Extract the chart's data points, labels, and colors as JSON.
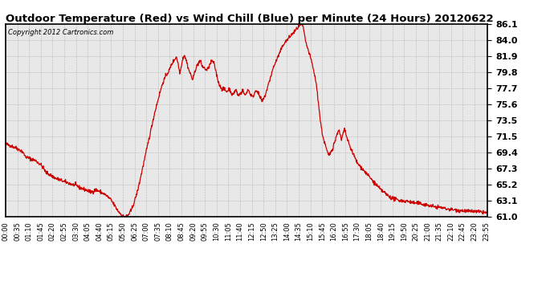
{
  "title": "Outdoor Temperature (Red) vs Wind Chill (Blue) per Minute (24 Hours) 20120622",
  "copyright": "Copyright 2012 Cartronics.com",
  "yticks": [
    61.0,
    63.1,
    65.2,
    67.3,
    69.4,
    71.5,
    73.5,
    75.6,
    77.7,
    79.8,
    81.9,
    84.0,
    86.1
  ],
  "ylim": [
    61.0,
    86.1
  ],
  "line_color": "#cc0000",
  "bg_color": "#e8e8e8",
  "grid_color": "#aaaaaa",
  "x_labels": [
    "00:00",
    "00:35",
    "01:10",
    "01:45",
    "02:20",
    "02:55",
    "03:30",
    "04:05",
    "04:40",
    "05:15",
    "05:50",
    "06:25",
    "07:00",
    "07:35",
    "08:10",
    "08:45",
    "09:20",
    "09:55",
    "10:30",
    "11:05",
    "11:40",
    "12:15",
    "12:50",
    "13:25",
    "14:00",
    "14:35",
    "15:10",
    "15:45",
    "16:20",
    "16:55",
    "17:30",
    "18:05",
    "18:40",
    "19:15",
    "19:50",
    "20:25",
    "21:00",
    "21:35",
    "22:10",
    "22:45",
    "23:20",
    "23:55"
  ],
  "keypoints": [
    [
      0,
      70.5
    ],
    [
      30,
      70.0
    ],
    [
      50,
      69.5
    ],
    [
      60,
      68.8
    ],
    [
      90,
      68.3
    ],
    [
      105,
      67.8
    ],
    [
      115,
      67.2
    ],
    [
      120,
      66.8
    ],
    [
      150,
      66.0
    ],
    [
      180,
      65.5
    ],
    [
      200,
      65.2
    ],
    [
      215,
      65.0
    ],
    [
      220,
      64.8
    ],
    [
      240,
      64.5
    ],
    [
      255,
      64.2
    ],
    [
      270,
      64.5
    ],
    [
      285,
      64.2
    ],
    [
      300,
      63.8
    ],
    [
      315,
      63.2
    ],
    [
      325,
      62.5
    ],
    [
      335,
      61.8
    ],
    [
      345,
      61.3
    ],
    [
      352,
      61.05
    ],
    [
      358,
      61.0
    ],
    [
      365,
      61.15
    ],
    [
      375,
      61.8
    ],
    [
      385,
      63.0
    ],
    [
      395,
      64.5
    ],
    [
      405,
      66.5
    ],
    [
      415,
      68.5
    ],
    [
      425,
      70.5
    ],
    [
      435,
      72.5
    ],
    [
      445,
      74.5
    ],
    [
      455,
      76.2
    ],
    [
      463,
      77.5
    ],
    [
      470,
      78.5
    ],
    [
      478,
      79.3
    ],
    [
      485,
      79.8
    ],
    [
      490,
      80.2
    ],
    [
      495,
      80.8
    ],
    [
      500,
      81.2
    ],
    [
      505,
      81.5
    ],
    [
      508,
      81.7
    ],
    [
      510,
      81.8
    ],
    [
      512,
      81.5
    ],
    [
      515,
      81.0
    ],
    [
      518,
      80.2
    ],
    [
      520,
      79.8
    ],
    [
      523,
      80.2
    ],
    [
      525,
      80.8
    ],
    [
      528,
      81.3
    ],
    [
      530,
      81.7
    ],
    [
      532,
      81.9
    ],
    [
      534,
      82.1
    ],
    [
      536,
      81.8
    ],
    [
      540,
      81.3
    ],
    [
      543,
      80.8
    ],
    [
      546,
      80.3
    ],
    [
      550,
      79.8
    ],
    [
      555,
      79.3
    ],
    [
      558,
      78.8
    ],
    [
      562,
      79.3
    ],
    [
      565,
      80.0
    ],
    [
      570,
      80.5
    ],
    [
      573,
      80.8
    ],
    [
      576,
      81.0
    ],
    [
      578,
      81.2
    ],
    [
      580,
      81.3
    ],
    [
      582,
      81.2
    ],
    [
      584,
      81.0
    ],
    [
      586,
      80.7
    ],
    [
      590,
      80.5
    ],
    [
      595,
      80.3
    ],
    [
      600,
      80.1
    ],
    [
      605,
      80.3
    ],
    [
      608,
      80.6
    ],
    [
      610,
      80.8
    ],
    [
      612,
      81.0
    ],
    [
      615,
      81.2
    ],
    [
      617,
      81.3
    ],
    [
      619,
      81.2
    ],
    [
      622,
      81.0
    ],
    [
      625,
      80.5
    ],
    [
      628,
      80.0
    ],
    [
      630,
      79.5
    ],
    [
      633,
      79.0
    ],
    [
      636,
      78.5
    ],
    [
      640,
      78.0
    ],
    [
      645,
      77.8
    ],
    [
      648,
      77.5
    ],
    [
      650,
      77.7
    ],
    [
      655,
      77.5
    ],
    [
      660,
      77.3
    ],
    [
      665,
      77.5
    ],
    [
      668,
      77.7
    ],
    [
      670,
      77.5
    ],
    [
      673,
      77.3
    ],
    [
      675,
      77.0
    ],
    [
      678,
      76.8
    ],
    [
      680,
      77.0
    ],
    [
      682,
      77.2
    ],
    [
      685,
      77.4
    ],
    [
      688,
      77.5
    ],
    [
      690,
      77.3
    ],
    [
      692,
      77.0
    ],
    [
      695,
      76.8
    ],
    [
      700,
      77.0
    ],
    [
      705,
      77.2
    ],
    [
      708,
      77.5
    ],
    [
      710,
      77.3
    ],
    [
      713,
      77.0
    ],
    [
      715,
      76.8
    ],
    [
      718,
      77.0
    ],
    [
      720,
      77.2
    ],
    [
      722,
      77.5
    ],
    [
      725,
      77.5
    ],
    [
      728,
      77.3
    ],
    [
      730,
      77.0
    ],
    [
      735,
      76.8
    ],
    [
      738,
      76.5
    ],
    [
      740,
      76.8
    ],
    [
      743,
      77.0
    ],
    [
      745,
      77.3
    ],
    [
      748,
      77.5
    ],
    [
      750,
      77.5
    ],
    [
      752,
      77.3
    ],
    [
      755,
      77.0
    ],
    [
      758,
      76.8
    ],
    [
      760,
      76.5
    ],
    [
      763,
      76.3
    ],
    [
      766,
      76.0
    ],
    [
      770,
      76.3
    ],
    [
      775,
      76.8
    ],
    [
      780,
      77.5
    ],
    [
      790,
      79.0
    ],
    [
      800,
      80.5
    ],
    [
      810,
      81.5
    ],
    [
      820,
      82.5
    ],
    [
      830,
      83.5
    ],
    [
      840,
      84.0
    ],
    [
      850,
      84.5
    ],
    [
      860,
      85.0
    ],
    [
      870,
      85.5
    ],
    [
      880,
      86.0
    ],
    [
      885,
      86.1
    ],
    [
      888,
      85.8
    ],
    [
      892,
      84.8
    ],
    [
      895,
      84.0
    ],
    [
      900,
      83.2
    ],
    [
      905,
      82.5
    ],
    [
      910,
      81.8
    ],
    [
      915,
      81.0
    ],
    [
      920,
      80.0
    ],
    [
      925,
      79.0
    ],
    [
      930,
      77.5
    ],
    [
      935,
      75.5
    ],
    [
      940,
      73.5
    ],
    [
      945,
      72.0
    ],
    [
      950,
      71.0
    ],
    [
      955,
      70.3
    ],
    [
      960,
      69.5
    ],
    [
      965,
      69.0
    ],
    [
      968,
      69.2
    ],
    [
      972,
      69.5
    ],
    [
      975,
      69.8
    ],
    [
      978,
      70.0
    ],
    [
      980,
      70.5
    ],
    [
      985,
      71.0
    ],
    [
      988,
      71.5
    ],
    [
      991,
      72.0
    ],
    [
      994,
      72.3
    ],
    [
      997,
      72.0
    ],
    [
      1000,
      71.5
    ],
    [
      1003,
      71.0
    ],
    [
      1006,
      71.5
    ],
    [
      1009,
      72.0
    ],
    [
      1012,
      72.3
    ],
    [
      1015,
      72.0
    ],
    [
      1018,
      71.5
    ],
    [
      1021,
      71.0
    ],
    [
      1025,
      70.5
    ],
    [
      1030,
      70.0
    ],
    [
      1035,
      69.5
    ],
    [
      1040,
      69.0
    ],
    [
      1045,
      68.5
    ],
    [
      1050,
      68.0
    ],
    [
      1060,
      67.5
    ],
    [
      1070,
      67.0
    ],
    [
      1080,
      66.5
    ],
    [
      1090,
      66.0
    ],
    [
      1100,
      65.5
    ],
    [
      1110,
      65.0
    ],
    [
      1120,
      64.5
    ],
    [
      1130,
      64.2
    ],
    [
      1140,
      63.8
    ],
    [
      1150,
      63.5
    ],
    [
      1160,
      63.3
    ],
    [
      1170,
      63.2
    ],
    [
      1180,
      63.1
    ],
    [
      1200,
      63.0
    ],
    [
      1220,
      62.8
    ],
    [
      1240,
      62.7
    ],
    [
      1260,
      62.5
    ],
    [
      1280,
      62.3
    ],
    [
      1300,
      62.2
    ],
    [
      1320,
      62.0
    ],
    [
      1340,
      61.9
    ],
    [
      1360,
      61.8
    ],
    [
      1380,
      61.7
    ],
    [
      1400,
      61.7
    ],
    [
      1420,
      61.6
    ],
    [
      1439,
      61.5
    ]
  ]
}
